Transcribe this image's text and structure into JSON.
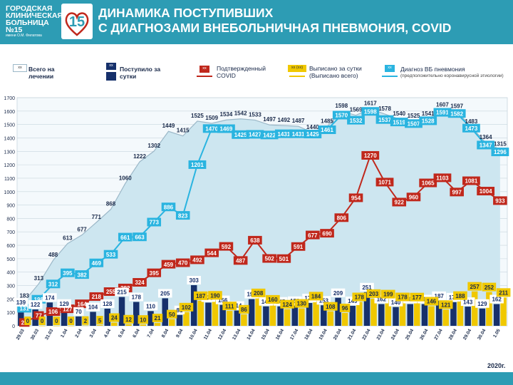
{
  "header": {
    "logo_line1": "ГОРОДСКАЯ",
    "logo_line2": "КЛИНИЧЕСКАЯ",
    "logo_line3": "БОЛЬНИЦА №15",
    "logo_line4": "имени О.М. Филатова",
    "logo_mark": "15",
    "title_line1": "ДИНАМИКА ПОСТУПИВШИХ",
    "title_line2": "С ДИАГНОЗАМИ ВНЕБОЛЬНИЧНАЯ ПНЕВМОНИЯ, COVID"
  },
  "legend": {
    "total_box": "xx",
    "total_label_1": "Всего на",
    "total_label_2": "лечении",
    "admitted_box": "xx",
    "admitted_label_1": "Поступило за",
    "admitted_label_2": "сутки",
    "covid_box": "xx",
    "covid_label_1": "Подтвержденный",
    "covid_label_2": "COVID",
    "discharged_box": "xx (xx)",
    "discharged_label_1": "Выписано за сутки",
    "discharged_label_2": "(Выписано всего)",
    "pneumonia_box": "xx",
    "pneumonia_label_1": "Диагноз ВБ пневмония",
    "pneumonia_label_2": "(предположительно коронавирусной этиологии)"
  },
  "colors": {
    "header": "#2d9cb4",
    "area_fill": "#cde6f0",
    "area_line": "#9cb8c8",
    "admitted_bar": "#16306b",
    "discharged_bar": "#f0c800",
    "covid_line": "#c0281c",
    "pneumonia_line": "#2ab4e0"
  },
  "footer": {
    "year": "2020г."
  },
  "chart_data": {
    "type": "bar",
    "x": [
      "29.03",
      "30.03",
      "31.03",
      "1.04",
      "2.04",
      "3.04",
      "4.04",
      "5.04",
      "6.04",
      "7.04",
      "8.04",
      "9.04",
      "10.04",
      "11.04",
      "12.04",
      "13.04",
      "14.04",
      "15.04",
      "16.04",
      "17.04",
      "18.04",
      "19.04",
      "20.04",
      "21.04",
      "22.04",
      "23.04",
      "24.04",
      "25.04",
      "26.04",
      "27.04",
      "28.04",
      "29.04",
      "30.04",
      "1.05"
    ],
    "ylim": [
      0,
      1700
    ],
    "yticks": [
      0,
      100,
      200,
      300,
      400,
      500,
      600,
      700,
      800,
      900,
      1000,
      1100,
      1200,
      1300,
      1400,
      1500,
      1600,
      1700
    ],
    "grid": true,
    "series": [
      {
        "name": "Всего на лечении",
        "type": "area",
        "values": [
          183,
          313,
          488,
          613,
          677,
          771,
          868,
          1060,
          1222,
          1302,
          1449,
          1415,
          1525,
          1509,
          1534,
          1542,
          1533,
          1497,
          1492,
          1487,
          1440,
          1485,
          1598,
          1569,
          1617,
          1578,
          1540,
          1525,
          1541,
          1607,
          1597,
          1483,
          1364,
          1315
        ]
      },
      {
        "name": "Поступило за сутки",
        "type": "bar",
        "values": [
          139,
          122,
          174,
          129,
          70,
          104,
          128,
          215,
          178,
          110,
          205,
          81,
          303,
          173,
          156,
          114,
          199,
          145,
          145,
          150,
          170,
          153,
          209,
          149,
          251,
          162,
          140,
          162,
          162,
          187,
          176,
          143,
          129,
          162
        ]
      },
      {
        "name": "Выписано за сутки",
        "type": "bar",
        "values": [
          0,
          0,
          0,
          0,
          2,
          5,
          24,
          12,
          10,
          21,
          50,
          102,
          187,
          190,
          111,
          86,
          208,
          160,
          124,
          130,
          184,
          108,
          96,
          178,
          203,
          199,
          178,
          177,
          146,
          121,
          188,
          257,
          252,
          211
        ]
      },
      {
        "name": "Подтвержденный COVID",
        "type": "line",
        "values": [
          25,
          77,
          106,
          127,
          164,
          218,
          255,
          282,
          324,
          395,
          459,
          470,
          492,
          544,
          592,
          487,
          638,
          502,
          501,
          591,
          677,
          690,
          806,
          954,
          1270,
          1071,
          922,
          960,
          1065,
          1103,
          997,
          1081,
          1004,
          933
        ]
      },
      {
        "name": "Диагноз ВБ пневмония",
        "type": "line",
        "values": [
          131,
          198,
          312,
          395,
          382,
          469,
          533,
          661,
          663,
          773,
          886,
          823,
          1201,
          1470,
          1469,
          1425,
          1427,
          1422,
          1431,
          1431,
          1429,
          1461,
          1570,
          1532,
          1598,
          1537,
          1519,
          1507,
          1528,
          1591,
          1582,
          1473,
          1347,
          1296
        ]
      }
    ]
  }
}
